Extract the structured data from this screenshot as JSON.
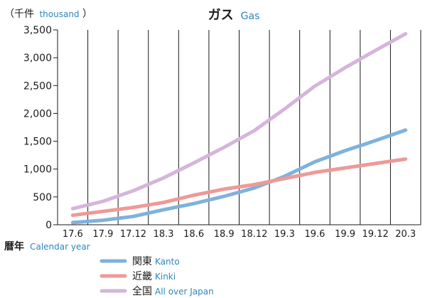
{
  "chart_data": {
    "type": "line",
    "title": "ガス",
    "title_en": "Gas",
    "ylabel_unit": "（千件",
    "ylabel_unit_en": "thousand",
    "ylabel_close": "）",
    "xlabel": "暦年",
    "xlabel_en": "Calendar year",
    "categories": [
      "17.6",
      "17.9",
      "17.12",
      "18.3",
      "18.6",
      "18.9",
      "18.12",
      "19.3",
      "19.6",
      "19.9",
      "19.12",
      "20.3"
    ],
    "ylim": [
      0,
      3500
    ],
    "yticks": [
      0,
      500,
      1000,
      1500,
      2000,
      2500,
      3000,
      3500
    ],
    "ytick_labels": [
      "0",
      "500",
      "1,000",
      "1,500",
      "2,000",
      "2,500",
      "3,000",
      "3,500"
    ],
    "grid": "vertical",
    "legend_position": "bottom",
    "series": [
      {
        "name": "関東",
        "name_en": "Kanto",
        "color": "#7fb2dc",
        "values": [
          40,
          80,
          150,
          270,
          380,
          510,
          660,
          870,
          1130,
          1330,
          1510,
          1700
        ]
      },
      {
        "name": "近畿",
        "name_en": "Kinki",
        "color": "#ee9a98",
        "values": [
          170,
          240,
          310,
          400,
          530,
          640,
          720,
          830,
          940,
          1020,
          1100,
          1180
        ]
      },
      {
        "name": "全国",
        "name_en": "All over Japan",
        "color": "#d6b4db",
        "values": [
          290,
          420,
          610,
          840,
          1110,
          1390,
          1690,
          2080,
          2490,
          2820,
          3130,
          3430
        ]
      }
    ]
  }
}
